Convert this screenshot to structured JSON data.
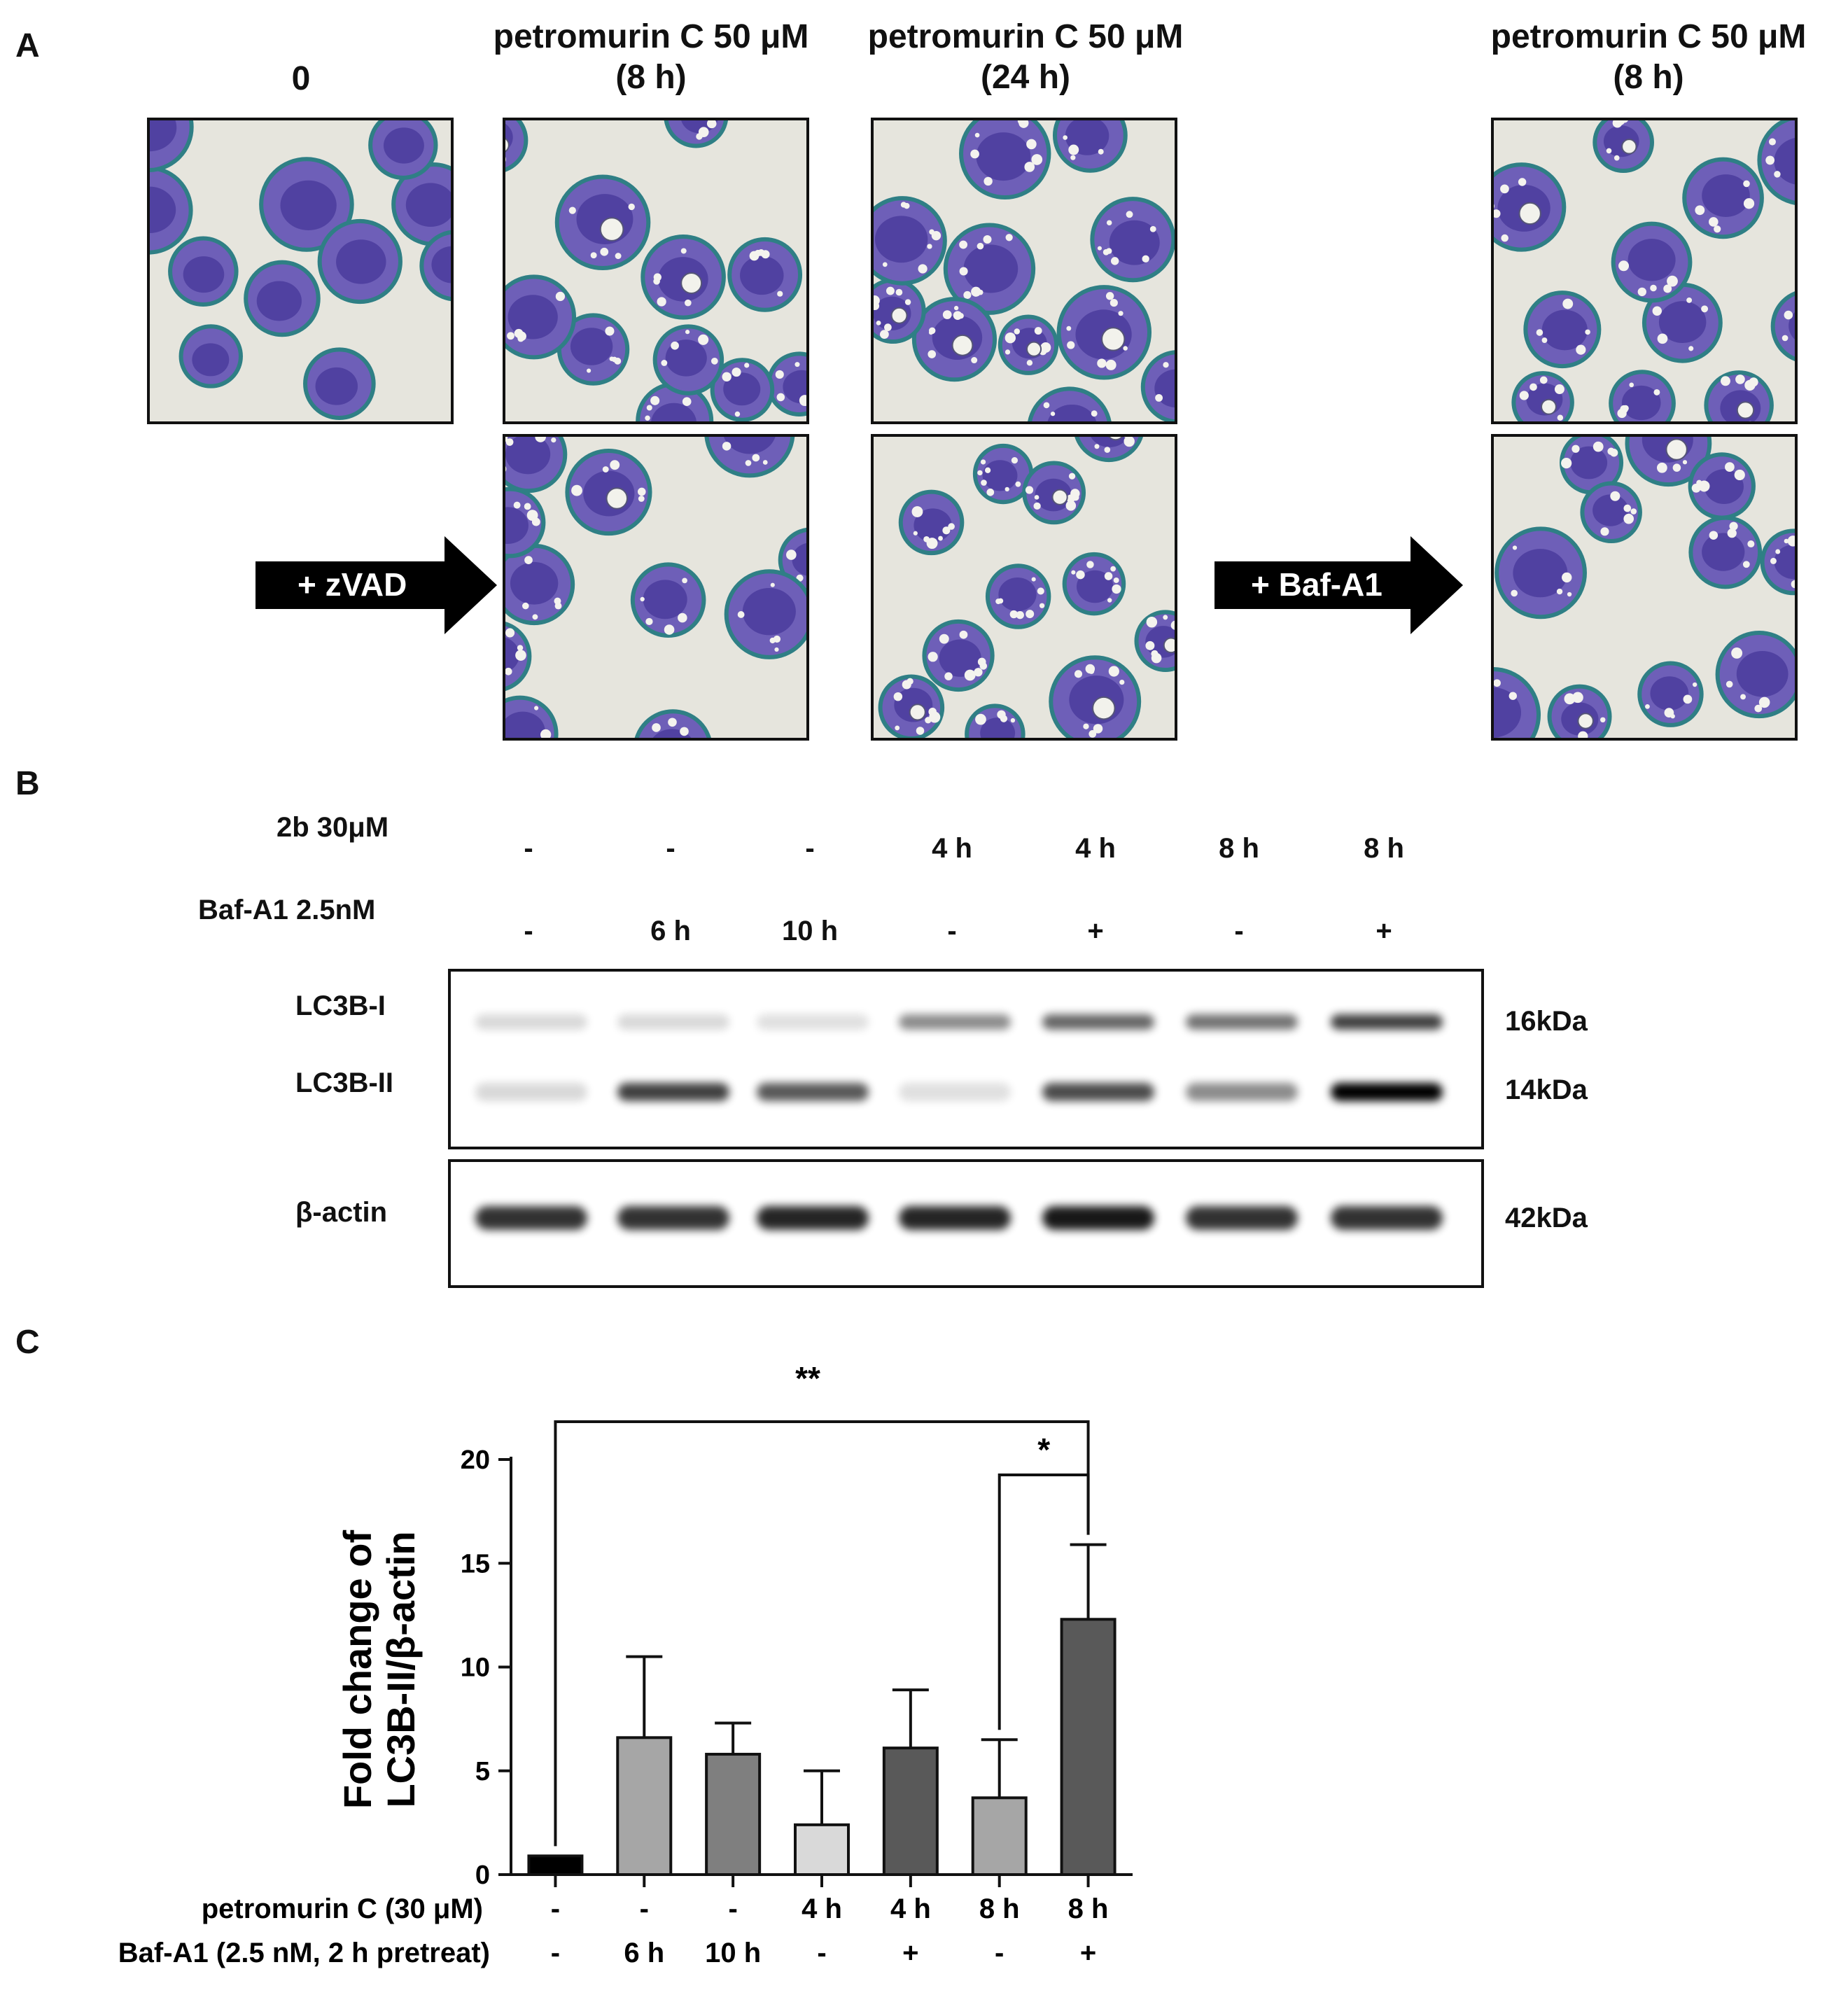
{
  "panelA": {
    "letter": "A",
    "conditions": [
      {
        "label_line1": "0",
        "label_line2": ""
      },
      {
        "label_line1": "petromurin C 50 μM",
        "label_line2": "(8 h)"
      },
      {
        "label_line1": "petromurin C 50 μM",
        "label_line2": "(24 h)"
      },
      {
        "label_line1": "petromurin C 50 μM",
        "label_line2": "(8 h)"
      }
    ],
    "arrows": {
      "zvad": "+ zVAD",
      "bafa1": "+ Baf-A1"
    },
    "colors": {
      "cytoplasm": "#6e5fb8",
      "nucleus": "#4b3c9c",
      "membrane": "#2f7f85",
      "background": "#e6e5dd"
    }
  },
  "panelB": {
    "letter": "B",
    "row_labels": [
      "2b 30μM",
      "Baf-A1 2.5nM"
    ],
    "lanes": [
      {
        "treat": "-",
        "baf": "-"
      },
      {
        "treat": "-",
        "baf": "6 h"
      },
      {
        "treat": "-",
        "baf": "10 h"
      },
      {
        "treat": "4 h",
        "baf": "-"
      },
      {
        "treat": "4 h",
        "baf": "+"
      },
      {
        "treat": "8 h",
        "baf": "-"
      },
      {
        "treat": "8 h",
        "baf": "+"
      }
    ],
    "proteins": [
      "LC3B-I",
      "LC3B-II",
      "β-actin"
    ],
    "mw": [
      "16kDa",
      "14kDa",
      "42kDa"
    ],
    "band_intensity": {
      "lc3b_i": [
        0.15,
        0.15,
        0.12,
        0.45,
        0.6,
        0.55,
        0.75
      ],
      "lc3b_ii": [
        0.15,
        0.75,
        0.65,
        0.12,
        0.7,
        0.45,
        1.0
      ],
      "actin": [
        0.8,
        0.8,
        0.85,
        0.85,
        0.9,
        0.8,
        0.8
      ]
    }
  },
  "panelC": {
    "letter": "C",
    "chart_data": {
      "type": "bar",
      "ylabel_line1": "Fold change of",
      "ylabel_line2": "LC3B-II/β-actin",
      "ylim": [
        0,
        20
      ],
      "yticks": [
        "0",
        "5",
        "10",
        "15",
        "20"
      ],
      "row_labels": [
        "petromurin C (30 μM)",
        "Baf-A1 (2.5 nM, 2 h pretreat)"
      ],
      "row1": [
        "-",
        "-",
        "-",
        "4 h",
        "4 h",
        "8 h",
        "8 h"
      ],
      "row2": [
        "-",
        "6 h",
        "10 h",
        "-",
        "+",
        "-",
        "+"
      ],
      "values": [
        0.9,
        6.6,
        5.8,
        2.4,
        6.1,
        3.7,
        12.3
      ],
      "errors": [
        0,
        3.9,
        1.5,
        2.6,
        2.8,
        2.8,
        3.6
      ],
      "bar_colors": [
        "#000000",
        "#a6a6a6",
        "#7f7f7f",
        "#d9d9d9",
        "#595959",
        "#a6a6a6",
        "#595959"
      ],
      "significance": [
        {
          "from": 0,
          "to": 6,
          "label": "**"
        },
        {
          "from": 5,
          "to": 6,
          "label": "*"
        }
      ]
    }
  }
}
